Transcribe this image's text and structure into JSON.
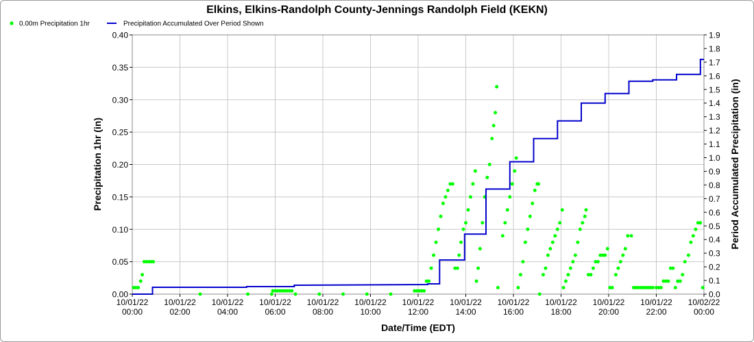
{
  "chart_data": {
    "type": "line",
    "title": "Elkins, Elkins-Randolph County-Jennings Randolph Field (KEKN)",
    "xlabel": "Date/Time (EDT)",
    "ylabel_left": "Precipitation 1hr (in)",
    "ylabel_right": "Period Accumulated Precipitation (in)",
    "ylim_left": [
      0,
      0.4
    ],
    "ylim_right": [
      0,
      1.9
    ],
    "xlim_hours": [
      0,
      24
    ],
    "grid": true,
    "legend_position": "top-left",
    "x_ticks": [
      {
        "date": "10/01/22",
        "time": "00:00"
      },
      {
        "date": "10/01/22",
        "time": "02:00"
      },
      {
        "date": "10/01/22",
        "time": "04:00"
      },
      {
        "date": "10/01/22",
        "time": "06:00"
      },
      {
        "date": "10/01/22",
        "time": "08:00"
      },
      {
        "date": "10/01/22",
        "time": "10:00"
      },
      {
        "date": "10/01/22",
        "time": "12:00"
      },
      {
        "date": "10/01/22",
        "time": "14:00"
      },
      {
        "date": "10/01/22",
        "time": "16:00"
      },
      {
        "date": "10/01/22",
        "time": "18:00"
      },
      {
        "date": "10/01/22",
        "time": "20:00"
      },
      {
        "date": "10/01/22",
        "time": "22:00"
      },
      {
        "date": "10/02/22",
        "time": "00:00"
      }
    ],
    "y_ticks_left": [
      "0.00",
      "0.05",
      "0.10",
      "0.15",
      "0.20",
      "0.25",
      "0.30",
      "0.35",
      "0.40"
    ],
    "y_ticks_right": [
      "0.0",
      "0.1",
      "0.2",
      "0.3",
      "0.4",
      "0.5",
      "0.6",
      "0.7",
      "0.8",
      "0.9",
      "1.0",
      "1.1",
      "1.2",
      "1.3",
      "1.4",
      "1.5",
      "1.6",
      "1.7",
      "1.8",
      "1.9"
    ],
    "series": [
      {
        "name": "0.00m Precipitation 1hr",
        "kind": "scatter",
        "axis": "left",
        "color": "#00ff00",
        "points": [
          [
            0.05,
            0.01
          ],
          [
            0.15,
            0.01
          ],
          [
            0.25,
            0.01
          ],
          [
            0.35,
            0.02
          ],
          [
            0.42,
            0.03
          ],
          [
            0.5,
            0.05
          ],
          [
            0.6,
            0.05
          ],
          [
            0.7,
            0.05
          ],
          [
            0.8,
            0.05
          ],
          [
            0.88,
            0.05
          ],
          [
            2.85,
            0.0
          ],
          [
            4.85,
            0.0
          ],
          [
            5.85,
            0.0
          ],
          [
            5.9,
            0.005
          ],
          [
            6.0,
            0.005
          ],
          [
            6.1,
            0.005
          ],
          [
            6.2,
            0.005
          ],
          [
            6.3,
            0.005
          ],
          [
            6.4,
            0.005
          ],
          [
            6.5,
            0.005
          ],
          [
            6.6,
            0.005
          ],
          [
            6.7,
            0.005
          ],
          [
            6.85,
            0.0
          ],
          [
            7.85,
            0.0
          ],
          [
            8.85,
            0.0
          ],
          [
            9.85,
            0.0
          ],
          [
            10.85,
            0.0
          ],
          [
            11.85,
            0.005
          ],
          [
            11.95,
            0.005
          ],
          [
            12.05,
            0.005
          ],
          [
            12.15,
            0.005
          ],
          [
            12.25,
            0.005
          ],
          [
            12.35,
            0.02
          ],
          [
            12.45,
            0.02
          ],
          [
            12.55,
            0.04
          ],
          [
            12.65,
            0.06
          ],
          [
            12.75,
            0.08
          ],
          [
            12.85,
            0.1
          ],
          [
            12.95,
            0.12
          ],
          [
            13.05,
            0.14
          ],
          [
            13.15,
            0.15
          ],
          [
            13.25,
            0.16
          ],
          [
            13.35,
            0.17
          ],
          [
            13.45,
            0.17
          ],
          [
            13.55,
            0.04
          ],
          [
            13.65,
            0.04
          ],
          [
            13.72,
            0.06
          ],
          [
            13.8,
            0.08
          ],
          [
            13.9,
            0.1
          ],
          [
            14.0,
            0.11
          ],
          [
            14.1,
            0.13
          ],
          [
            14.2,
            0.15
          ],
          [
            14.3,
            0.17
          ],
          [
            14.4,
            0.19
          ],
          [
            14.45,
            0.02
          ],
          [
            14.52,
            0.04
          ],
          [
            14.6,
            0.07
          ],
          [
            14.7,
            0.11
          ],
          [
            14.8,
            0.15
          ],
          [
            14.9,
            0.18
          ],
          [
            15.0,
            0.2
          ],
          [
            15.1,
            0.24
          ],
          [
            15.17,
            0.26
          ],
          [
            15.24,
            0.28
          ],
          [
            15.3,
            0.32
          ],
          [
            15.35,
            0.01
          ],
          [
            15.55,
            0.09
          ],
          [
            15.65,
            0.11
          ],
          [
            15.75,
            0.13
          ],
          [
            15.85,
            0.15
          ],
          [
            15.95,
            0.17
          ],
          [
            16.05,
            0.19
          ],
          [
            16.12,
            0.21
          ],
          [
            16.2,
            0.01
          ],
          [
            16.3,
            0.03
          ],
          [
            16.4,
            0.05
          ],
          [
            16.5,
            0.08
          ],
          [
            16.6,
            0.1
          ],
          [
            16.7,
            0.12
          ],
          [
            16.8,
            0.14
          ],
          [
            16.9,
            0.16
          ],
          [
            17.0,
            0.17
          ],
          [
            17.05,
            0.17
          ],
          [
            17.1,
            0.0
          ],
          [
            17.25,
            0.03
          ],
          [
            17.35,
            0.04
          ],
          [
            17.45,
            0.06
          ],
          [
            17.55,
            0.07
          ],
          [
            17.65,
            0.08
          ],
          [
            17.75,
            0.09
          ],
          [
            17.85,
            0.1
          ],
          [
            17.95,
            0.11
          ],
          [
            18.05,
            0.13
          ],
          [
            18.1,
            0.01
          ],
          [
            18.2,
            0.02
          ],
          [
            18.3,
            0.03
          ],
          [
            18.4,
            0.04
          ],
          [
            18.5,
            0.05
          ],
          [
            18.6,
            0.06
          ],
          [
            18.7,
            0.08
          ],
          [
            18.8,
            0.1
          ],
          [
            18.9,
            0.11
          ],
          [
            19.0,
            0.12
          ],
          [
            19.05,
            0.13
          ],
          [
            19.15,
            0.03
          ],
          [
            19.25,
            0.03
          ],
          [
            19.35,
            0.04
          ],
          [
            19.45,
            0.05
          ],
          [
            19.55,
            0.05
          ],
          [
            19.65,
            0.06
          ],
          [
            19.75,
            0.06
          ],
          [
            19.85,
            0.06
          ],
          [
            19.95,
            0.07
          ],
          [
            20.05,
            0.01
          ],
          [
            20.15,
            0.01
          ],
          [
            20.3,
            0.03
          ],
          [
            20.4,
            0.04
          ],
          [
            20.5,
            0.05
          ],
          [
            20.6,
            0.06
          ],
          [
            20.7,
            0.07
          ],
          [
            20.8,
            0.09
          ],
          [
            20.95,
            0.09
          ],
          [
            21.05,
            0.01
          ],
          [
            21.15,
            0.01
          ],
          [
            21.25,
            0.01
          ],
          [
            21.35,
            0.01
          ],
          [
            21.45,
            0.01
          ],
          [
            21.55,
            0.01
          ],
          [
            21.65,
            0.01
          ],
          [
            21.75,
            0.01
          ],
          [
            21.85,
            0.01
          ],
          [
            22.0,
            0.01
          ],
          [
            22.1,
            0.01
          ],
          [
            22.2,
            0.01
          ],
          [
            22.3,
            0.02
          ],
          [
            22.4,
            0.02
          ],
          [
            22.5,
            0.02
          ],
          [
            22.6,
            0.04
          ],
          [
            22.7,
            0.04
          ],
          [
            22.8,
            0.01
          ],
          [
            22.9,
            0.02
          ],
          [
            23.0,
            0.02
          ],
          [
            23.1,
            0.03
          ],
          [
            23.2,
            0.05
          ],
          [
            23.35,
            0.06
          ],
          [
            23.45,
            0.08
          ],
          [
            23.55,
            0.09
          ],
          [
            23.65,
            0.1
          ],
          [
            23.75,
            0.11
          ],
          [
            23.85,
            0.11
          ],
          [
            23.95,
            0.01
          ]
        ]
      },
      {
        "name": "Precipitation Accumulated Over Period Shown",
        "kind": "step",
        "axis": "right",
        "color": "#0000cc",
        "points": [
          [
            0.0,
            0.0
          ],
          [
            0.85,
            0.0
          ],
          [
            0.85,
            0.05
          ],
          [
            4.8,
            0.05
          ],
          [
            4.8,
            0.055
          ],
          [
            6.8,
            0.055
          ],
          [
            6.8,
            0.065
          ],
          [
            12.4,
            0.07
          ],
          [
            12.4,
            0.075
          ],
          [
            12.9,
            0.075
          ],
          [
            12.9,
            0.25
          ],
          [
            13.95,
            0.25
          ],
          [
            13.95,
            0.44
          ],
          [
            14.85,
            0.44
          ],
          [
            14.85,
            0.77
          ],
          [
            15.85,
            0.77
          ],
          [
            15.85,
            0.97
          ],
          [
            16.85,
            0.97
          ],
          [
            16.85,
            1.14
          ],
          [
            17.85,
            1.14
          ],
          [
            17.85,
            1.27
          ],
          [
            18.85,
            1.27
          ],
          [
            18.85,
            1.4
          ],
          [
            19.85,
            1.4
          ],
          [
            19.85,
            1.47
          ],
          [
            20.85,
            1.47
          ],
          [
            20.85,
            1.56
          ],
          [
            21.85,
            1.56
          ],
          [
            21.85,
            1.57
          ],
          [
            22.85,
            1.57
          ],
          [
            22.85,
            1.61
          ],
          [
            23.85,
            1.61
          ],
          [
            23.85,
            1.72
          ],
          [
            24.0,
            1.72
          ]
        ]
      }
    ]
  }
}
